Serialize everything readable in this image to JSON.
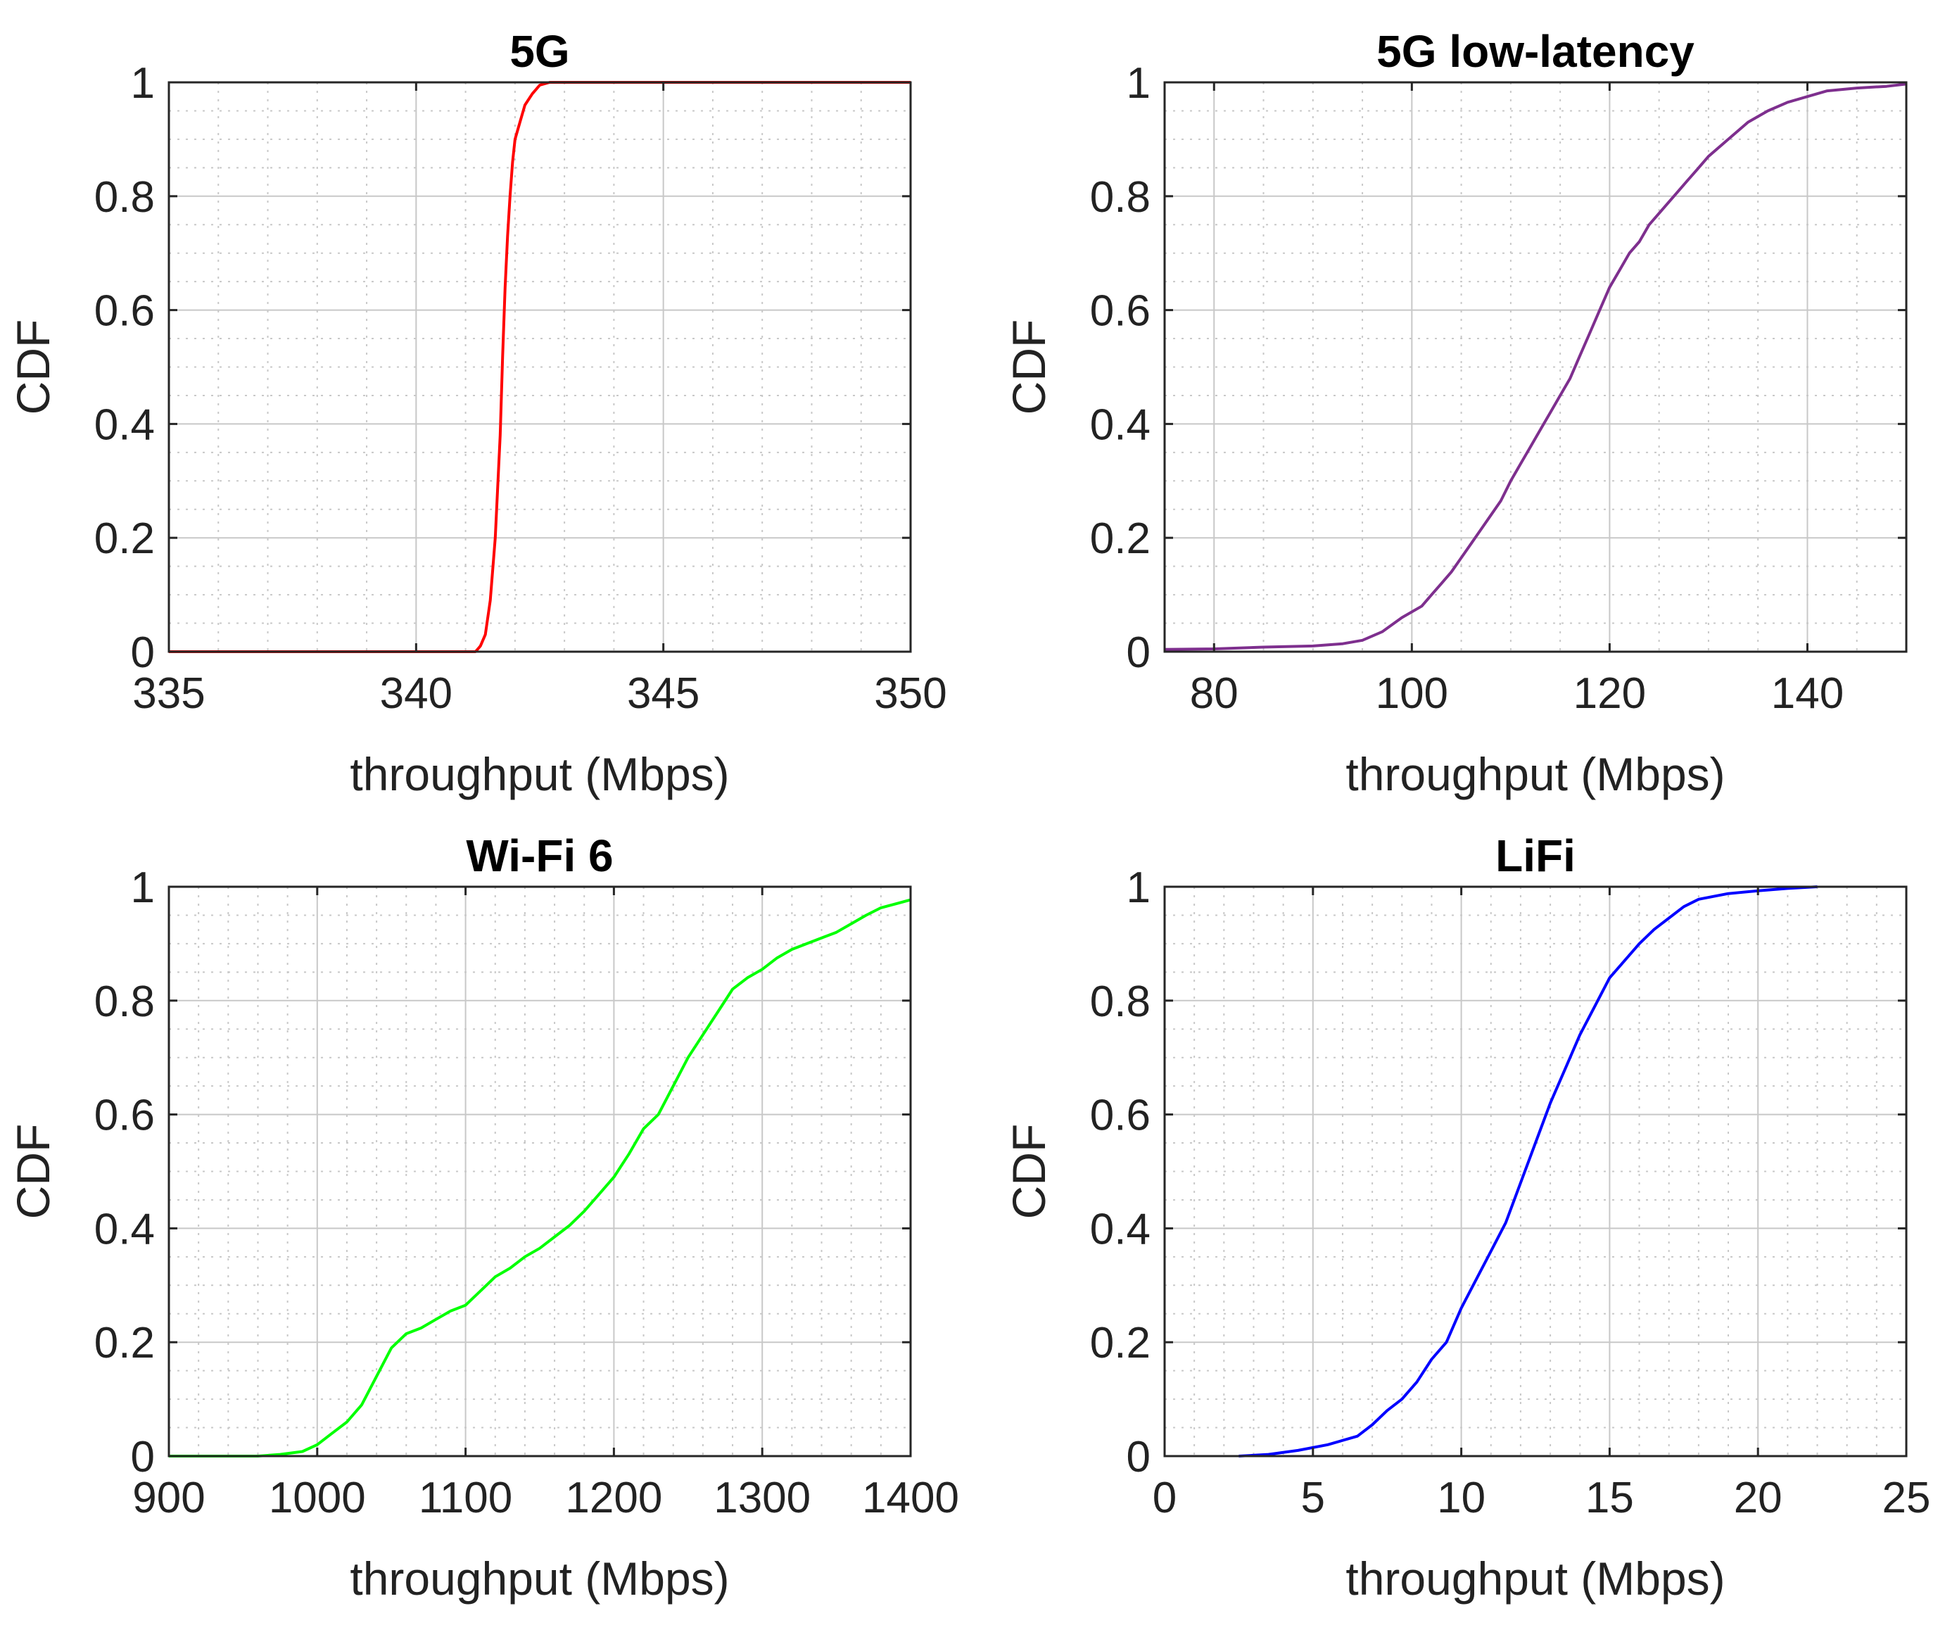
{
  "chart_data": [
    {
      "type": "line",
      "title": "5G",
      "xlabel": "throughput (Mbps)",
      "ylabel": "CDF",
      "xlim": [
        335,
        350
      ],
      "ylim": [
        0,
        1
      ],
      "xticks": [
        335,
        340,
        345,
        350
      ],
      "xtick_labels": [
        "335",
        "340",
        "345",
        "350"
      ],
      "yticks": [
        0,
        0.2,
        0.4,
        0.6,
        0.8,
        1
      ],
      "ytick_labels": [
        "0",
        "0.2",
        "0.4",
        "0.6",
        "0.8",
        "1"
      ],
      "xminor_step": 1,
      "yminor_step": 0.05,
      "grid": true,
      "color": "#ff0000",
      "series": [
        {
          "name": "5G",
          "x": [
            335,
            341.2,
            341.3,
            341.4,
            341.5,
            341.6,
            341.7,
            341.75,
            341.8,
            341.85,
            341.9,
            341.95,
            342.0,
            342.1,
            342.2,
            342.35,
            342.5,
            342.7,
            350
          ],
          "y": [
            0,
            0,
            0.01,
            0.03,
            0.09,
            0.2,
            0.38,
            0.52,
            0.64,
            0.73,
            0.8,
            0.86,
            0.9,
            0.93,
            0.96,
            0.98,
            0.995,
            1,
            1
          ]
        }
      ]
    },
    {
      "type": "line",
      "title": "5G low-latency",
      "xlabel": "throughput (Mbps)",
      "ylabel": "CDF",
      "xlim": [
        75,
        150
      ],
      "ylim": [
        0,
        1
      ],
      "xticks": [
        80,
        100,
        120,
        140
      ],
      "xtick_labels": [
        "80",
        "100",
        "120",
        "140"
      ],
      "yticks": [
        0,
        0.2,
        0.4,
        0.6,
        0.8,
        1
      ],
      "ytick_labels": [
        "0",
        "0.2",
        "0.4",
        "0.6",
        "0.8",
        "1"
      ],
      "xminor_step": 5,
      "yminor_step": 0.05,
      "grid": true,
      "color": "#7e2f8e",
      "series": [
        {
          "name": "5G low-latency",
          "x": [
            75,
            80,
            85,
            90,
            93,
            95,
            97,
            99,
            101,
            102,
            103,
            104,
            105,
            106,
            107,
            108,
            109,
            110,
            111,
            112,
            113,
            114,
            115,
            116,
            117,
            118,
            119,
            120,
            121,
            122,
            123,
            124,
            125,
            126,
            127,
            128,
            129,
            130,
            132,
            134,
            136,
            138,
            140,
            142,
            145,
            148,
            150
          ],
          "y": [
            0.004,
            0.005,
            0.008,
            0.01,
            0.014,
            0.02,
            0.035,
            0.06,
            0.08,
            0.1,
            0.12,
            0.14,
            0.165,
            0.19,
            0.215,
            0.24,
            0.265,
            0.3,
            0.33,
            0.36,
            0.39,
            0.42,
            0.45,
            0.48,
            0.52,
            0.56,
            0.6,
            0.64,
            0.67,
            0.7,
            0.72,
            0.75,
            0.77,
            0.79,
            0.81,
            0.83,
            0.85,
            0.87,
            0.9,
            0.93,
            0.95,
            0.965,
            0.975,
            0.985,
            0.99,
            0.993,
            0.997
          ]
        }
      ]
    },
    {
      "type": "line",
      "title": "Wi-Fi 6",
      "xlabel": "throughput (Mbps)",
      "ylabel": "CDF",
      "xlim": [
        900,
        1400
      ],
      "ylim": [
        0,
        1
      ],
      "xticks": [
        900,
        1000,
        1100,
        1200,
        1300,
        1400
      ],
      "xtick_labels": [
        "900",
        "1000",
        "1100",
        "1200",
        "1300",
        "1400"
      ],
      "yticks": [
        0,
        0.2,
        0.4,
        0.6,
        0.8,
        1
      ],
      "ytick_labels": [
        "0",
        "0.2",
        "0.4",
        "0.6",
        "0.8",
        "1"
      ],
      "xminor_step": 20,
      "yminor_step": 0.05,
      "grid": true,
      "color": "#00ff00",
      "series": [
        {
          "name": "Wi-Fi 6",
          "x": [
            900,
            960,
            975,
            990,
            1000,
            1010,
            1020,
            1030,
            1040,
            1050,
            1060,
            1070,
            1080,
            1090,
            1100,
            1110,
            1120,
            1130,
            1140,
            1150,
            1160,
            1170,
            1180,
            1190,
            1200,
            1210,
            1220,
            1230,
            1240,
            1250,
            1260,
            1270,
            1280,
            1290,
            1300,
            1310,
            1320,
            1330,
            1340,
            1350,
            1360,
            1370,
            1380,
            1390,
            1400
          ],
          "y": [
            0,
            0,
            0.003,
            0.008,
            0.02,
            0.04,
            0.06,
            0.09,
            0.14,
            0.19,
            0.215,
            0.225,
            0.24,
            0.255,
            0.265,
            0.29,
            0.315,
            0.33,
            0.35,
            0.365,
            0.385,
            0.405,
            0.43,
            0.46,
            0.49,
            0.53,
            0.575,
            0.6,
            0.65,
            0.7,
            0.74,
            0.78,
            0.82,
            0.84,
            0.855,
            0.875,
            0.89,
            0.9,
            0.91,
            0.92,
            0.935,
            0.95,
            0.963,
            0.97,
            0.977
          ]
        }
      ]
    },
    {
      "type": "line",
      "title": "LiFi",
      "xlabel": "throughput (Mbps)",
      "ylabel": "CDF",
      "xlim": [
        0,
        25
      ],
      "ylim": [
        0,
        1
      ],
      "xticks": [
        0,
        5,
        10,
        15,
        20,
        25
      ],
      "xtick_labels": [
        "0",
        "5",
        "10",
        "15",
        "20",
        "25"
      ],
      "yticks": [
        0,
        0.2,
        0.4,
        0.6,
        0.8,
        1
      ],
      "ytick_labels": [
        "0",
        "0.2",
        "0.4",
        "0.6",
        "0.8",
        "1"
      ],
      "xminor_step": 1,
      "yminor_step": 0.05,
      "grid": true,
      "color": "#0000ff",
      "series": [
        {
          "name": "LiFi",
          "x": [
            2.5,
            3.5,
            4.5,
            5.5,
            6.5,
            7,
            7.5,
            8,
            8.5,
            9,
            9.5,
            10,
            10.5,
            11,
            11.5,
            12,
            12.5,
            13,
            13.5,
            14,
            14.5,
            15,
            15.5,
            16,
            16.5,
            17,
            17.5,
            18,
            19,
            20,
            21,
            22
          ],
          "y": [
            0,
            0.003,
            0.01,
            0.02,
            0.035,
            0.055,
            0.08,
            0.1,
            0.13,
            0.17,
            0.2,
            0.26,
            0.31,
            0.36,
            0.41,
            0.48,
            0.55,
            0.62,
            0.68,
            0.74,
            0.79,
            0.84,
            0.87,
            0.9,
            0.925,
            0.945,
            0.965,
            0.978,
            0.988,
            0.993,
            0.997,
            1
          ]
        }
      ]
    }
  ]
}
